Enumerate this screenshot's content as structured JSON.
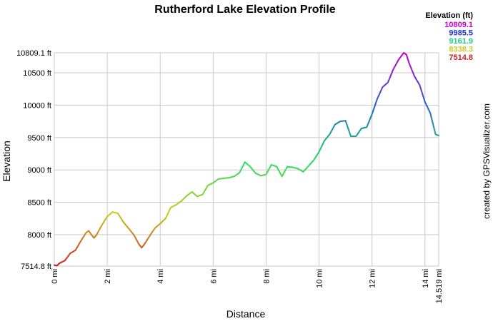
{
  "chart_data": {
    "type": "line",
    "title": "Rutherford Lake Elevation Profile",
    "xlabel": "Distance",
    "ylabel": "Elevation",
    "credit": "created by GPSVisualizer.com",
    "xlim": [
      0,
      14.519
    ],
    "ylim": [
      7514.8,
      10809.1
    ],
    "x_ticks": [
      "0 mi",
      "2 mi",
      "4 mi",
      "6 mi",
      "8 mi",
      "10 mi",
      "12 mi",
      "14 mi",
      "14.519 mi"
    ],
    "y_ticks": [
      "7514.8 ft",
      "8000 ft",
      "8500 ft",
      "9000 ft",
      "9500 ft",
      "10000 ft",
      "10500 ft",
      "10809.1 ft"
    ],
    "legend": {
      "title": "Elevation (ft)",
      "placement": "top-right",
      "entries": [
        {
          "label": "10809.1",
          "color": "#cc00cc"
        },
        {
          "label": "9985.5",
          "color": "#2233cc"
        },
        {
          "label": "9161.9",
          "color": "#22cc88"
        },
        {
          "label": "8338.3",
          "color": "#cccc22"
        },
        {
          "label": "7514.8",
          "color": "#cc2222"
        }
      ]
    },
    "color_scale": [
      "#cc2222",
      "#cccc22",
      "#22dd66",
      "#2266cc",
      "#cc00cc"
    ],
    "x": [
      0,
      0.1,
      0.2,
      0.4,
      0.6,
      0.8,
      1.0,
      1.2,
      1.3,
      1.4,
      1.5,
      1.6,
      1.8,
      2.0,
      2.2,
      2.4,
      2.6,
      2.8,
      3.0,
      3.2,
      3.3,
      3.4,
      3.6,
      3.8,
      4.0,
      4.2,
      4.4,
      4.6,
      4.8,
      5.0,
      5.2,
      5.4,
      5.6,
      5.8,
      6.0,
      6.2,
      6.4,
      6.6,
      6.8,
      7.0,
      7.2,
      7.4,
      7.6,
      7.8,
      8.0,
      8.2,
      8.4,
      8.6,
      8.8,
      9.0,
      9.2,
      9.4,
      9.6,
      9.8,
      10.0,
      10.2,
      10.4,
      10.6,
      10.8,
      11.0,
      11.2,
      11.4,
      11.6,
      11.8,
      12.0,
      12.2,
      12.4,
      12.6,
      12.8,
      13.0,
      13.2,
      13.3,
      13.4,
      13.6,
      13.8,
      14.0,
      14.2,
      14.4,
      14.519
    ],
    "y": [
      7530,
      7520,
      7560,
      7600,
      7710,
      7760,
      7900,
      8030,
      8060,
      8000,
      7950,
      8000,
      8150,
      8280,
      8350,
      8330,
      8200,
      8100,
      8000,
      7850,
      7800,
      7850,
      7980,
      8100,
      8170,
      8250,
      8420,
      8460,
      8520,
      8600,
      8660,
      8590,
      8620,
      8760,
      8800,
      8860,
      8870,
      8880,
      8900,
      8960,
      9120,
      9050,
      8950,
      8910,
      8930,
      9080,
      9050,
      8900,
      9050,
      9040,
      9020,
      8970,
      9060,
      9150,
      9280,
      9450,
      9550,
      9700,
      9750,
      9760,
      9520,
      9520,
      9640,
      9660,
      9860,
      10100,
      10280,
      10350,
      10550,
      10700,
      10809.1,
      10780,
      10650,
      10450,
      10310,
      10050,
      9880,
      9550,
      9530
    ]
  }
}
